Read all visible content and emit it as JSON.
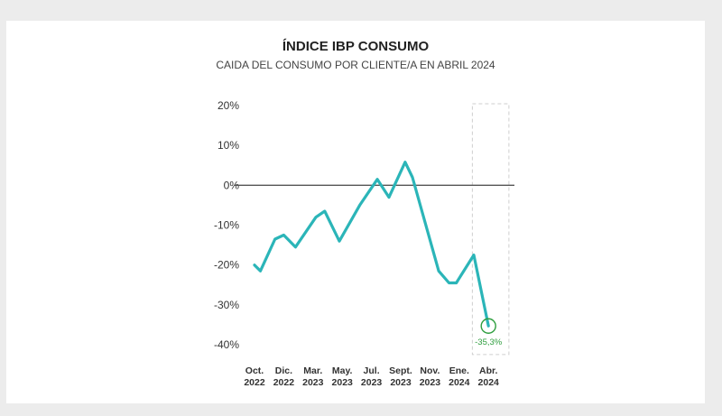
{
  "chart_data": {
    "type": "line",
    "title": "ÍNDICE IBP CONSUMO",
    "subtitle": "CAIDA DEL CONSUMO POR CLIENTE/A EN ABRIL 2024",
    "ylim": [
      -40,
      20
    ],
    "yticks": [
      "20%",
      "10%",
      "0%",
      "-10%",
      "-20%",
      "-30%",
      "-40%"
    ],
    "ytick_values": [
      20,
      10,
      0,
      -10,
      -20,
      -30,
      -40
    ],
    "x_labels": [
      {
        "month": "Oct.",
        "year": "2022"
      },
      {
        "month": "Dic.",
        "year": "2022"
      },
      {
        "month": "Mar.",
        "year": "2023"
      },
      {
        "month": "May.",
        "year": "2023"
      },
      {
        "month": "Jul.",
        "year": "2023"
      },
      {
        "month": "Sept.",
        "year": "2023"
      },
      {
        "month": "Nov.",
        "year": "2023"
      },
      {
        "month": "Ene.",
        "year": "2024"
      },
      {
        "month": "Abr.",
        "year": "2024"
      }
    ],
    "series": [
      {
        "points": [
          {
            "x": 0.0,
            "y": -20.0
          },
          {
            "x": 0.2,
            "y": -21.5
          },
          {
            "x": 0.7,
            "y": -13.5
          },
          {
            "x": 1.0,
            "y": -12.5
          },
          {
            "x": 1.4,
            "y": -15.5
          },
          {
            "x": 2.1,
            "y": -8.0
          },
          {
            "x": 2.4,
            "y": -6.5
          },
          {
            "x": 2.9,
            "y": -14.0
          },
          {
            "x": 3.6,
            "y": -5.0
          },
          {
            "x": 4.2,
            "y": 1.5
          },
          {
            "x": 4.6,
            "y": -3.0
          },
          {
            "x": 5.15,
            "y": 5.8
          },
          {
            "x": 5.4,
            "y": 2.0
          },
          {
            "x": 6.3,
            "y": -21.5
          },
          {
            "x": 6.65,
            "y": -24.5
          },
          {
            "x": 6.9,
            "y": -24.5
          },
          {
            "x": 7.5,
            "y": -17.5
          },
          {
            "x": 8.0,
            "y": -35.3
          }
        ]
      }
    ],
    "annotation": {
      "label": "-35,3%",
      "x": 8.0,
      "y": -35.3
    },
    "colors": {
      "line": "#2bb5b8",
      "annotation": "#2e9e3e",
      "zero_line": "#555555",
      "highlight_box": "#cfcfcf"
    }
  }
}
